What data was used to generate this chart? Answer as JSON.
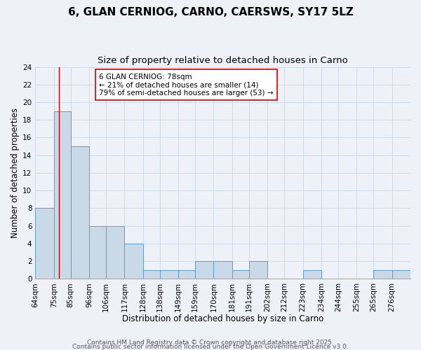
{
  "title": "6, GLAN CERNIOG, CARNO, CAERSWS, SY17 5LZ",
  "subtitle": "Size of property relative to detached houses in Carno",
  "xlabel": "Distribution of detached houses by size in Carno",
  "ylabel": "Number of detached properties",
  "bin_labels": [
    "64sqm",
    "75sqm",
    "85sqm",
    "96sqm",
    "106sqm",
    "117sqm",
    "128sqm",
    "138sqm",
    "149sqm",
    "159sqm",
    "170sqm",
    "181sqm",
    "191sqm",
    "202sqm",
    "212sqm",
    "223sqm",
    "234sqm",
    "244sqm",
    "255sqm",
    "265sqm",
    "276sqm"
  ],
  "bin_edges": [
    64,
    75,
    85,
    96,
    106,
    117,
    128,
    138,
    149,
    159,
    170,
    181,
    191,
    202,
    212,
    223,
    234,
    244,
    255,
    265,
    276,
    287
  ],
  "counts": [
    8,
    19,
    15,
    6,
    6,
    4,
    1,
    1,
    1,
    2,
    2,
    1,
    2,
    0,
    0,
    1,
    0,
    0,
    0,
    1,
    1
  ],
  "bar_color": "#c9d9e8",
  "bar_edge_color": "#5b9bd5",
  "grid_color": "#c8d8e8",
  "background_color": "#eef2f8",
  "vline_x": 78,
  "vline_color": "#cc0000",
  "annotation_line1": "6 GLAN CERNIOG: 78sqm",
  "annotation_line2": "← 21% of detached houses are smaller (14)",
  "annotation_line3": "79% of semi-detached houses are larger (53) →",
  "annotation_box_edge": "#cc0000",
  "ylim": [
    0,
    24
  ],
  "yticks": [
    0,
    2,
    4,
    6,
    8,
    10,
    12,
    14,
    16,
    18,
    20,
    22,
    24
  ],
  "footer_line1": "Contains HM Land Registry data © Crown copyright and database right 2025.",
  "footer_line2": "Contains public sector information licensed under the Open Government Licence v3.0.",
  "title_fontsize": 11,
  "subtitle_fontsize": 9.5,
  "label_fontsize": 8.5,
  "tick_fontsize": 7.5,
  "annotation_fontsize": 7.5,
  "footer_fontsize": 6.5
}
